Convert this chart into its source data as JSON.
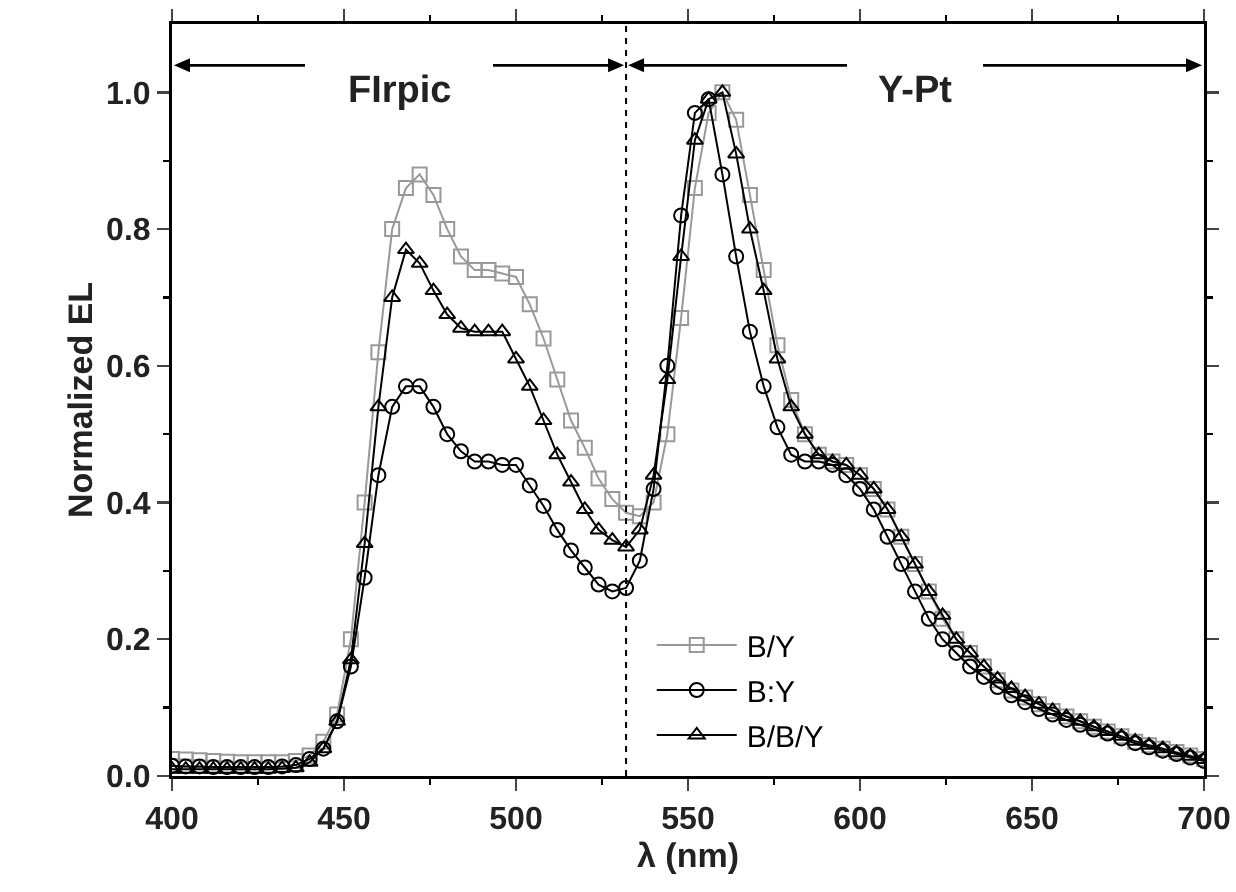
{
  "chart_data": {
    "type": "line",
    "xlabel": "λ (nm)",
    "ylabel": "Normalized EL",
    "xlim": [
      400,
      700
    ],
    "xticks": [
      400,
      450,
      500,
      550,
      600,
      650,
      700
    ],
    "ylim": [
      0,
      1.1
    ],
    "yticks": [
      {
        "value": 0,
        "label": "0.0"
      },
      0.2,
      0.4,
      0.6,
      0.8,
      {
        "value": 1,
        "label": "1.0"
      }
    ],
    "x": [
      400,
      404,
      408,
      412,
      416,
      420,
      424,
      428,
      432,
      436,
      440,
      444,
      448,
      452,
      456,
      460,
      464,
      468,
      472,
      476,
      480,
      484,
      488,
      492,
      496,
      500,
      504,
      508,
      512,
      516,
      520,
      524,
      528,
      532,
      536,
      540,
      544,
      548,
      552,
      556,
      560,
      564,
      568,
      572,
      576,
      580,
      584,
      588,
      592,
      596,
      600,
      604,
      608,
      612,
      616,
      620,
      624,
      628,
      632,
      636,
      640,
      644,
      648,
      652,
      656,
      660,
      664,
      668,
      672,
      676,
      680,
      684,
      688,
      692,
      696,
      700
    ],
    "series": [
      {
        "name": "B/Y",
        "color": "#999999",
        "marker": "square",
        "values": [
          0.025,
          0.024,
          0.023,
          0.022,
          0.021,
          0.02,
          0.02,
          0.02,
          0.02,
          0.022,
          0.03,
          0.05,
          0.09,
          0.2,
          0.4,
          0.62,
          0.8,
          0.86,
          0.88,
          0.85,
          0.8,
          0.76,
          0.74,
          0.74,
          0.735,
          0.73,
          0.69,
          0.64,
          0.58,
          0.52,
          0.48,
          0.435,
          0.405,
          0.385,
          0.38,
          0.4,
          0.5,
          0.67,
          0.86,
          0.97,
          1.0,
          0.96,
          0.85,
          0.74,
          0.63,
          0.55,
          0.5,
          0.47,
          0.46,
          0.455,
          0.44,
          0.42,
          0.39,
          0.35,
          0.31,
          0.27,
          0.23,
          0.2,
          0.18,
          0.16,
          0.14,
          0.125,
          0.115,
          0.105,
          0.095,
          0.087,
          0.08,
          0.072,
          0.065,
          0.058,
          0.05,
          0.045,
          0.04,
          0.035,
          0.03,
          0.025
        ]
      },
      {
        "name": "B:Y",
        "color": "#000000",
        "marker": "circle",
        "values": [
          0.015,
          0.014,
          0.014,
          0.013,
          0.013,
          0.013,
          0.013,
          0.013,
          0.014,
          0.016,
          0.025,
          0.04,
          0.08,
          0.16,
          0.29,
          0.44,
          0.54,
          0.57,
          0.57,
          0.54,
          0.5,
          0.475,
          0.46,
          0.46,
          0.455,
          0.455,
          0.425,
          0.395,
          0.36,
          0.33,
          0.305,
          0.28,
          0.27,
          0.275,
          0.315,
          0.42,
          0.6,
          0.82,
          0.97,
          0.99,
          0.88,
          0.76,
          0.65,
          0.57,
          0.51,
          0.47,
          0.46,
          0.46,
          0.455,
          0.44,
          0.42,
          0.39,
          0.35,
          0.31,
          0.27,
          0.23,
          0.2,
          0.18,
          0.16,
          0.145,
          0.13,
          0.118,
          0.108,
          0.098,
          0.09,
          0.082,
          0.075,
          0.068,
          0.062,
          0.055,
          0.048,
          0.042,
          0.037,
          0.032,
          0.027,
          0.022
        ]
      },
      {
        "name": "B/B/Y",
        "color": "#000000",
        "marker": "triangle",
        "values": [
          0.01,
          0.01,
          0.01,
          0.01,
          0.01,
          0.01,
          0.01,
          0.01,
          0.011,
          0.012,
          0.02,
          0.04,
          0.08,
          0.17,
          0.34,
          0.54,
          0.7,
          0.77,
          0.75,
          0.71,
          0.675,
          0.655,
          0.65,
          0.65,
          0.65,
          0.61,
          0.57,
          0.52,
          0.47,
          0.43,
          0.39,
          0.36,
          0.345,
          0.335,
          0.36,
          0.44,
          0.58,
          0.76,
          0.93,
          0.99,
          1.0,
          0.91,
          0.8,
          0.71,
          0.61,
          0.54,
          0.5,
          0.47,
          0.46,
          0.455,
          0.44,
          0.42,
          0.39,
          0.35,
          0.31,
          0.27,
          0.235,
          0.2,
          0.18,
          0.16,
          0.142,
          0.128,
          0.116,
          0.105,
          0.096,
          0.087,
          0.08,
          0.072,
          0.065,
          0.058,
          0.051,
          0.045,
          0.04,
          0.034,
          0.029,
          0.024
        ]
      }
    ],
    "ref_lines": [
      {
        "axis": "x",
        "value": 532,
        "color": "#000000",
        "line_style": "dotted"
      }
    ],
    "annotations": [
      "FIrpic",
      "Y-Pt"
    ],
    "legend": "bottom",
    "grid": false,
    "line_style": "solid"
  }
}
